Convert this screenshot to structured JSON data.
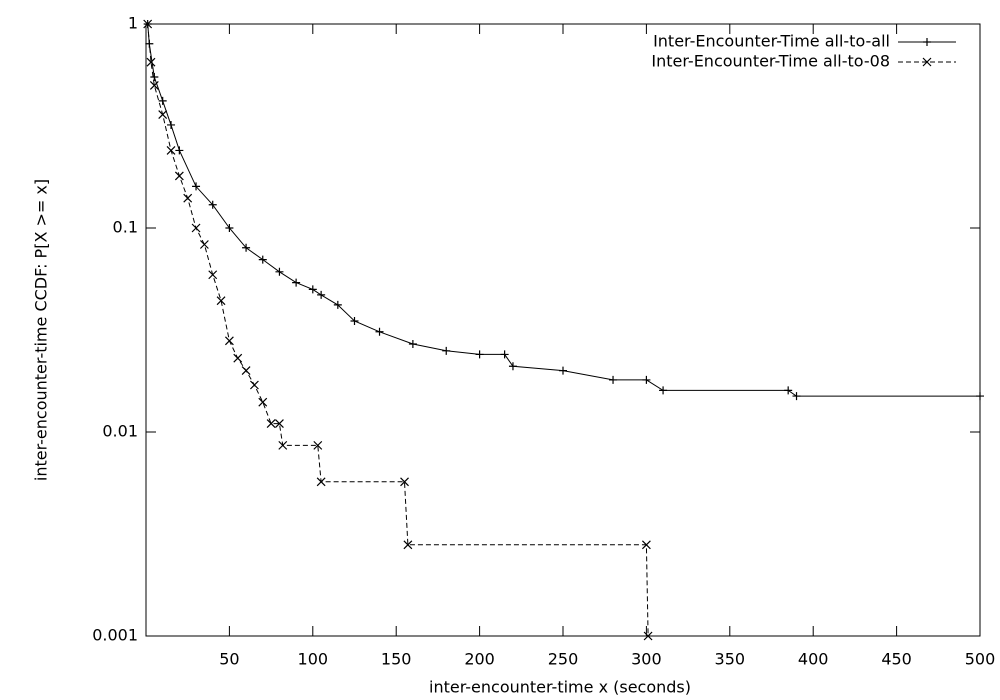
{
  "chart_data": {
    "type": "line",
    "xlabel": "inter-encounter-time x (seconds)",
    "ylabel": "inter-encounter-time CCDF: P[X >= x]",
    "xlim": [
      0,
      500
    ],
    "xticks": [
      50,
      100,
      150,
      200,
      250,
      300,
      350,
      400,
      450,
      500
    ],
    "ylim": [
      0.001,
      1
    ],
    "yticks": [
      0.001,
      0.01,
      0.1,
      1
    ],
    "yscale": "log",
    "legend": "top-right",
    "series": [
      {
        "name": "Inter-Encounter-Time all-to-all",
        "color": "#000000",
        "dash": "solid",
        "marker": "plus",
        "x": [
          1,
          2,
          5,
          10,
          15,
          20,
          30,
          40,
          50,
          60,
          70,
          80,
          90,
          100,
          105,
          115,
          125,
          140,
          160,
          180,
          200,
          215,
          220,
          250,
          280,
          300,
          310,
          385,
          390,
          500
        ],
        "values": [
          1,
          0.8,
          0.55,
          0.42,
          0.32,
          0.24,
          0.16,
          0.13,
          0.1,
          0.08,
          0.07,
          0.061,
          0.054,
          0.05,
          0.047,
          0.042,
          0.035,
          0.031,
          0.027,
          0.025,
          0.024,
          0.024,
          0.021,
          0.02,
          0.018,
          0.018,
          0.016,
          0.016,
          0.015,
          0.015
        ]
      },
      {
        "name": "Inter-Encounter-Time all-to-08",
        "color": "#000000",
        "dash": "dashed",
        "marker": "cross",
        "x": [
          1,
          3,
          5,
          10,
          15,
          20,
          25,
          30,
          35,
          40,
          45,
          50,
          55,
          60,
          65,
          70,
          75,
          80,
          82,
          103,
          105,
          155,
          157,
          300,
          301
        ],
        "values": [
          1,
          0.65,
          0.5,
          0.36,
          0.24,
          0.18,
          0.14,
          0.1,
          0.083,
          0.059,
          0.044,
          0.028,
          0.023,
          0.02,
          0.017,
          0.014,
          0.011,
          0.011,
          0.0086,
          0.0086,
          0.0057,
          0.0057,
          0.0028,
          0.0028,
          0.001
        ]
      }
    ]
  }
}
